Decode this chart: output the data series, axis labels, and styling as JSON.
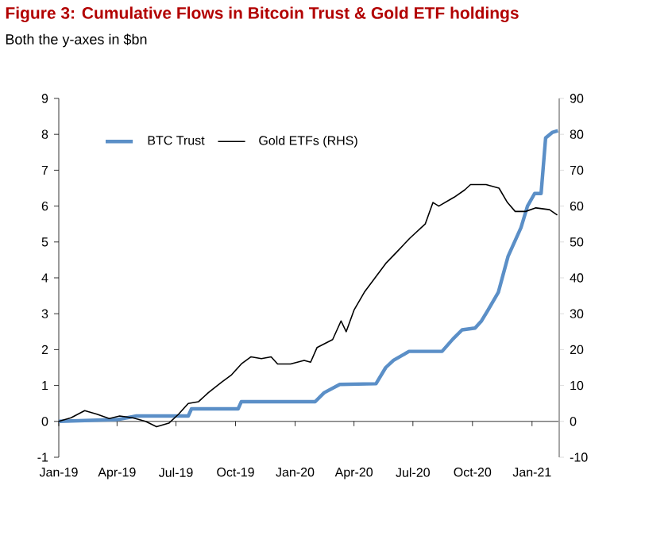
{
  "chart_data": {
    "type": "line",
    "title": "Figure 3: Cumulative Flows in Bitcoin Trust & Gold ETF holdings",
    "subtitle": "Both the y-axes in $bn",
    "xlim": [
      "2019-01-01",
      "2021-02-12"
    ],
    "xticks": [
      {
        "value": "2019-01-01",
        "label": "Jan-19"
      },
      {
        "value": "2019-04-01",
        "label": "Apr-19"
      },
      {
        "value": "2019-07-01",
        "label": "Jul-19"
      },
      {
        "value": "2019-10-01",
        "label": "Oct-19"
      },
      {
        "value": "2020-01-01",
        "label": "Jan-20"
      },
      {
        "value": "2020-04-01",
        "label": "Apr-20"
      },
      {
        "value": "2020-07-01",
        "label": "Jul-20"
      },
      {
        "value": "2020-10-01",
        "label": "Oct-20"
      },
      {
        "value": "2021-01-01",
        "label": "Jan-21"
      }
    ],
    "ylim": [
      -1,
      9
    ],
    "yticks": [
      -1,
      0,
      1,
      2,
      3,
      4,
      5,
      6,
      7,
      8,
      9
    ],
    "y2lim": [
      -10,
      90
    ],
    "y2ticks": [
      -10,
      0,
      10,
      20,
      30,
      40,
      50,
      60,
      70,
      80,
      90
    ],
    "legend": "top left",
    "series": [
      {
        "name": "BTC Trust",
        "color": "#5b8fc7",
        "axis": "y",
        "x": [
          "2019-01-01",
          "2019-04-01",
          "2019-05-01",
          "2019-07-20",
          "2019-07-25",
          "2019-10-05",
          "2019-10-10",
          "2020-02-01",
          "2020-02-15",
          "2020-03-10",
          "2020-05-05",
          "2020-05-20",
          "2020-06-01",
          "2020-06-25",
          "2020-08-15",
          "2020-09-01",
          "2020-09-15",
          "2020-10-05",
          "2020-10-15",
          "2020-10-25",
          "2020-11-10",
          "2020-11-25",
          "2020-12-15",
          "2020-12-25",
          "2021-01-05",
          "2021-01-15",
          "2021-01-22",
          "2021-02-01",
          "2021-02-10"
        ],
        "values": [
          0,
          0.05,
          0.15,
          0.15,
          0.35,
          0.35,
          0.55,
          0.55,
          0.8,
          1.03,
          1.05,
          1.5,
          1.7,
          1.95,
          1.95,
          2.3,
          2.55,
          2.6,
          2.8,
          3.1,
          3.6,
          4.6,
          5.4,
          6.0,
          6.35,
          6.35,
          7.9,
          8.05,
          8.1
        ]
      },
      {
        "name": "Gold ETFs (RHS)",
        "color": "#000000",
        "axis": "y2",
        "x": [
          "2019-01-01",
          "2019-01-20",
          "2019-02-10",
          "2019-03-01",
          "2019-03-20",
          "2019-04-05",
          "2019-04-25",
          "2019-05-15",
          "2019-06-01",
          "2019-06-20",
          "2019-07-05",
          "2019-07-20",
          "2019-08-05",
          "2019-08-20",
          "2019-09-10",
          "2019-09-25",
          "2019-10-10",
          "2019-10-25",
          "2019-11-10",
          "2019-11-25",
          "2019-12-05",
          "2019-12-25",
          "2020-01-15",
          "2020-01-25",
          "2020-02-04",
          "2020-02-28",
          "2020-03-12",
          "2020-03-20",
          "2020-04-01",
          "2020-04-17",
          "2020-05-20",
          "2020-06-05",
          "2020-06-26",
          "2020-07-20",
          "2020-08-01",
          "2020-08-10",
          "2020-09-03",
          "2020-09-19",
          "2020-09-28",
          "2020-10-22",
          "2020-11-11",
          "2020-11-24",
          "2020-12-06",
          "2020-12-22",
          "2021-01-07",
          "2021-01-28",
          "2021-02-09"
        ],
        "values": [
          0,
          1,
          3,
          2,
          0.8,
          1.5,
          1,
          0,
          -1.5,
          -0.5,
          2,
          5,
          5.5,
          8,
          11,
          13,
          16,
          18,
          17.5,
          18,
          16,
          16,
          17,
          16.5,
          20.6,
          22.8,
          28,
          25,
          31,
          36,
          44,
          47,
          51,
          55,
          61,
          60,
          62.5,
          64.5,
          66,
          66,
          65,
          61,
          58.5,
          58.5,
          59.5,
          59,
          57.5
        ]
      }
    ]
  }
}
